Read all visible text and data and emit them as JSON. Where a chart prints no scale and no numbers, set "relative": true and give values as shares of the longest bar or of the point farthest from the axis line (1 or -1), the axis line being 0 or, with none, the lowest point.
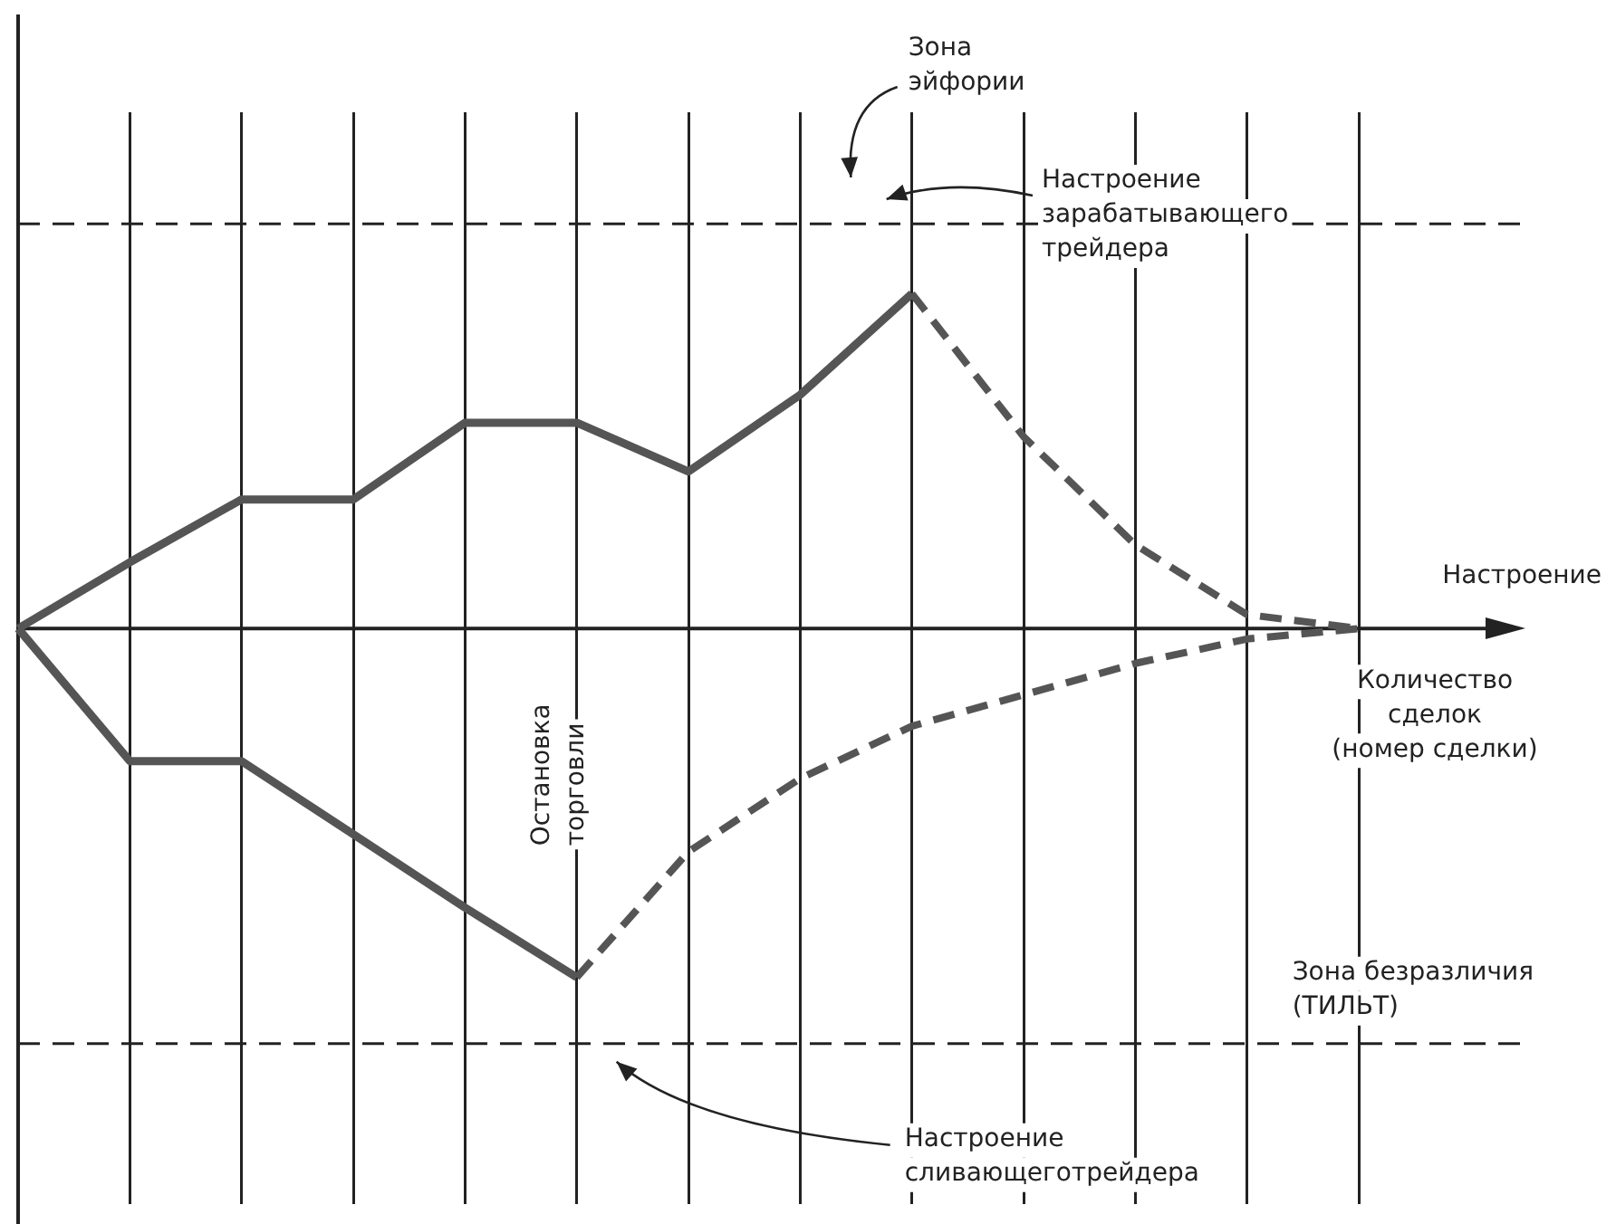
{
  "chart_data": {
    "type": "line",
    "relative": true,
    "xlabel": "Количество\nсделок\n(номер сделки)",
    "ylabel": "Настроение",
    "categories": [
      null,
      null,
      null,
      null,
      null,
      null,
      null,
      null,
      null,
      null,
      null,
      null,
      null
    ],
    "series": [
      {
        "color": "#555555",
        "line_style": "solid",
        "values": [
          0,
          0.19,
          0.37,
          0.37,
          0.59,
          0.59,
          0.45,
          0.67,
          0.96,
          null,
          null,
          null,
          null
        ]
      },
      {
        "color": "#555555",
        "line_style": "dashed",
        "values": [
          null,
          null,
          null,
          null,
          null,
          null,
          null,
          null,
          0.96,
          0.55,
          0.24,
          0.04,
          0
        ]
      },
      {
        "color": "#555555",
        "line_style": "solid",
        "values": [
          0,
          -0.38,
          -0.38,
          -0.59,
          -0.8,
          -1,
          null,
          null,
          null,
          null,
          null,
          null,
          null
        ]
      },
      {
        "color": "#555555",
        "line_style": "dashed",
        "values": [
          null,
          null,
          null,
          null,
          null,
          -1,
          -0.64,
          -0.43,
          -0.28,
          -0.19,
          -0.1,
          -0.03,
          0
        ]
      }
    ],
    "ref_lines": [
      {
        "axis": "y",
        "value": 1.16,
        "line_style": "dashed",
        "color": "#222222"
      },
      {
        "axis": "y",
        "value": -1.19,
        "line_style": "dashed",
        "color": "#222222"
      }
    ],
    "annotations": [
      "Зона\nэйфории",
      "Настроение\nзарабатывающего\nтрейдера",
      "Остановка\nторговли",
      "Зона безразличия\n(ТИЛЬТ)",
      "Настроение\nсливающеготрейдера"
    ],
    "marker": "none",
    "grid": "x",
    "legend": false
  }
}
